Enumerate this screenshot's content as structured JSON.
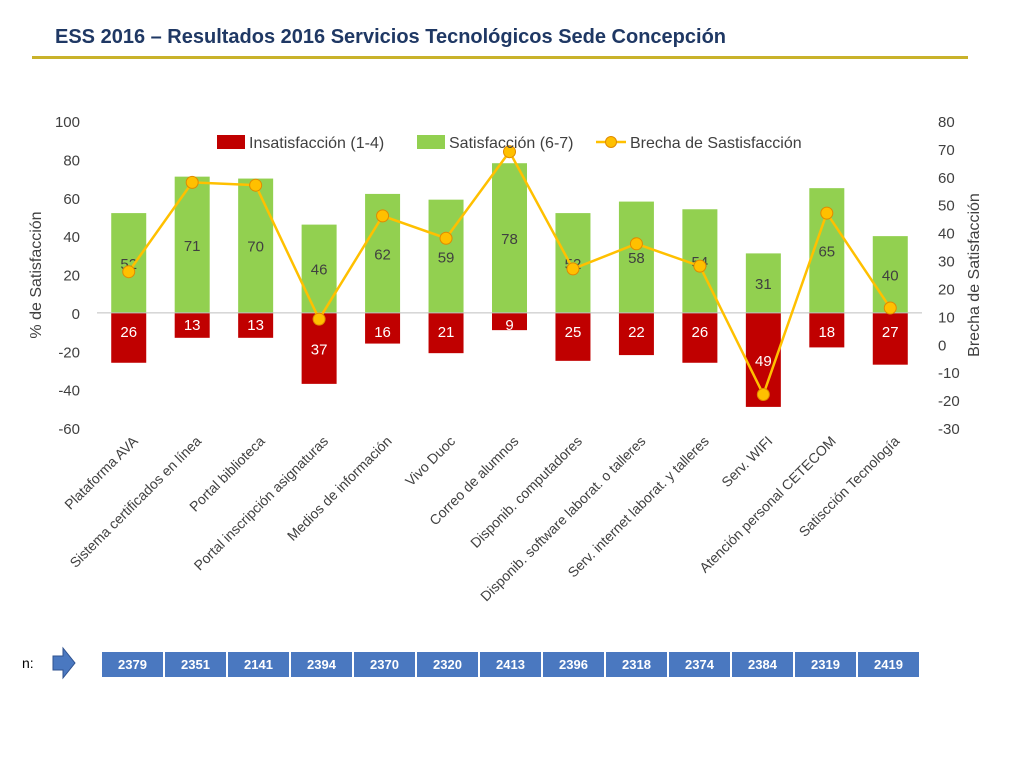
{
  "title": "ESS 2016 – Resultados 2016 Servicios Tecnológicos Sede Concepción",
  "chart_data": {
    "type": "bar",
    "categories": [
      "Plataforma AVA",
      "Sistema certificados en línea",
      "Portal biblioteca",
      "Portal inscripción asignaturas",
      "Medios de información",
      "Vivo Duoc",
      "Correo de alumnos",
      "Disponib. computadores",
      "Disponib. software laborat. o talleres",
      "Serv. internet laborat. y talleres",
      "Serv. WIFI",
      "Atención personal CETECOM",
      "Satiscción Tecnología"
    ],
    "series": [
      {
        "name": "Insatisfacción (1-4)",
        "type": "bar",
        "axis": "left",
        "color": "#c00000",
        "values": [
          26,
          13,
          13,
          37,
          16,
          21,
          9,
          25,
          22,
          26,
          49,
          18,
          27
        ]
      },
      {
        "name": "Satisfacción (6-7)",
        "type": "bar",
        "axis": "left",
        "color": "#92d050",
        "values": [
          52,
          71,
          70,
          46,
          62,
          59,
          78,
          52,
          58,
          54,
          31,
          65,
          40
        ]
      },
      {
        "name": "Brecha de Sastisfacción",
        "type": "line",
        "axis": "right",
        "color": "#ffc000",
        "values": [
          26,
          58,
          57,
          9,
          46,
          38,
          69,
          27,
          36,
          28,
          -18,
          47,
          13
        ]
      }
    ],
    "ylabel": "% de Satisfacción",
    "ylim": [
      -60,
      100
    ],
    "yticks": [
      100,
      80,
      60,
      40,
      20,
      0,
      -20,
      -40,
      -60
    ],
    "y2label": "Brecha de Satisfacción",
    "y2lim": [
      -30,
      80
    ],
    "y2ticks": [
      80,
      70,
      60,
      50,
      40,
      30,
      20,
      10,
      0,
      -10,
      -20,
      -30
    ],
    "legend": "top-center",
    "grid": false
  },
  "n_row": {
    "label": "n:",
    "values": [
      "2379",
      "2351",
      "2141",
      "2394",
      "2370",
      "2320",
      "2413",
      "2396",
      "2318",
      "2374",
      "2384",
      "2319",
      "2419"
    ]
  },
  "colors": {
    "title": "#1f3864",
    "rule": "#c9b22a",
    "n_cell": "#4a78c0"
  }
}
